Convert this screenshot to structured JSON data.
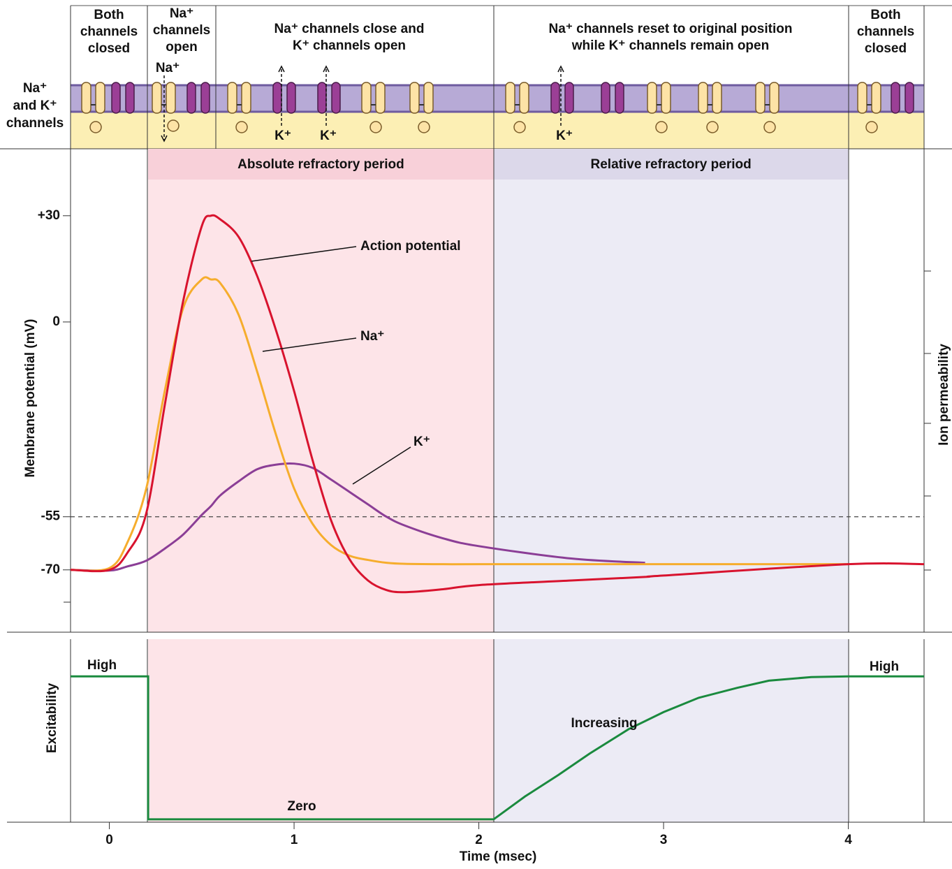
{
  "diagram": {
    "row_label": [
      "Na⁺",
      "and K⁺",
      "channels"
    ],
    "phases": [
      [
        "Both",
        "channels",
        "closed"
      ],
      [
        "Na⁺",
        "channels",
        "open"
      ],
      [
        "Na⁺ channels close and",
        "K⁺ channels open"
      ],
      [
        "Na⁺ channels reset to original position",
        "while K⁺ channels remain open"
      ],
      [
        "Both",
        "channels",
        "closed"
      ]
    ],
    "ions": [
      "Na⁺",
      "K⁺",
      "K⁺",
      "K⁺"
    ]
  },
  "chart_data": [
    {
      "type": "line",
      "smooth": true,
      "y_label": "Membrane potential (mV)",
      "y2_label": "Ion permeability",
      "regions": [
        {
          "label": "Absolute refractory period",
          "start": 0.21,
          "end": 2.08,
          "color": "#fde4e8",
          "header_color": "#f8d0d9"
        },
        {
          "label": "Relative refractory period",
          "start": 2.08,
          "end": 4.0,
          "color": "#ecebf5",
          "header_color": "#dcd8ea"
        }
      ],
      "threshold": -55,
      "x": [
        -0.21,
        0,
        0.1,
        0.2,
        0.3,
        0.4,
        0.5,
        0.55,
        0.6,
        0.7,
        0.8,
        0.9,
        1.0,
        1.1,
        1.2,
        1.3,
        1.4,
        1.5,
        1.6,
        1.8,
        2.0,
        2.5,
        2.9,
        3.0,
        4.0,
        4.41
      ],
      "series": [
        {
          "name": "Action potential",
          "color": "#d8132e",
          "values": [
            -70,
            -70,
            -65,
            -54,
            -23.5,
            6,
            27,
            30,
            29,
            24,
            13,
            -2,
            -19.5,
            -39,
            -56,
            -67,
            -73,
            -75.7,
            -76.3,
            -75.5,
            -74.3,
            -73,
            -72,
            -71.6,
            -68.4,
            -68.4
          ]
        },
        {
          "name": "Na⁺",
          "color": "#f6ad2d",
          "values": [
            -70,
            -69.5,
            -62,
            -47,
            -19.5,
            4,
            12,
            12,
            11,
            2,
            -14,
            -31.5,
            -47,
            -57,
            -63,
            -66,
            -67.2,
            -68,
            -68.3,
            -68.4,
            -68.4,
            -68.4,
            -68.4,
            -68.4,
            -68.4,
            null
          ]
        },
        {
          "name": "K⁺",
          "color": "#8b3e96",
          "values": [
            -70,
            -70.2,
            -69,
            -67.4,
            -64,
            -60,
            -54.5,
            -52,
            -49,
            -45,
            -41.6,
            -40.3,
            -40,
            -41.2,
            -44.5,
            -48,
            -51.5,
            -55,
            -57.5,
            -61,
            -63.3,
            -66.8,
            -68,
            null,
            null,
            null
          ]
        }
      ],
      "xlim": [
        -0.21,
        4.41
      ],
      "ylim": [
        -87.6,
        48.9
      ],
      "yticks": [
        {
          "value": 30,
          "label": "+30"
        },
        0,
        -55,
        -70
      ]
    },
    {
      "type": "line",
      "smooth": false,
      "y_label": "Excitability",
      "x_label": "Time (msec)",
      "regions": [
        {
          "start": 0.21,
          "end": 2.08,
          "color": "#fde4e8"
        },
        {
          "start": 2.08,
          "end": 4.0,
          "color": "#ecebf5"
        }
      ],
      "x": [
        -0.21,
        0.21,
        0.21,
        2.08,
        2.25,
        2.43,
        2.6,
        2.81,
        3.0,
        3.19,
        3.4,
        3.57,
        3.8,
        4.0,
        4.41
      ],
      "values": [
        1,
        1,
        0,
        0,
        0.16,
        0.31,
        0.46,
        0.63,
        0.75,
        0.85,
        0.92,
        0.97,
        0.995,
        1,
        1
      ],
      "color": "#1a8a3e",
      "annotations": [
        "High",
        "Zero",
        "Increasing",
        "High"
      ],
      "xlim": [
        -0.21,
        4.41
      ],
      "ylim": [
        -0.02,
        1.26
      ],
      "xticks": [
        0,
        1,
        2,
        3,
        4
      ]
    }
  ]
}
